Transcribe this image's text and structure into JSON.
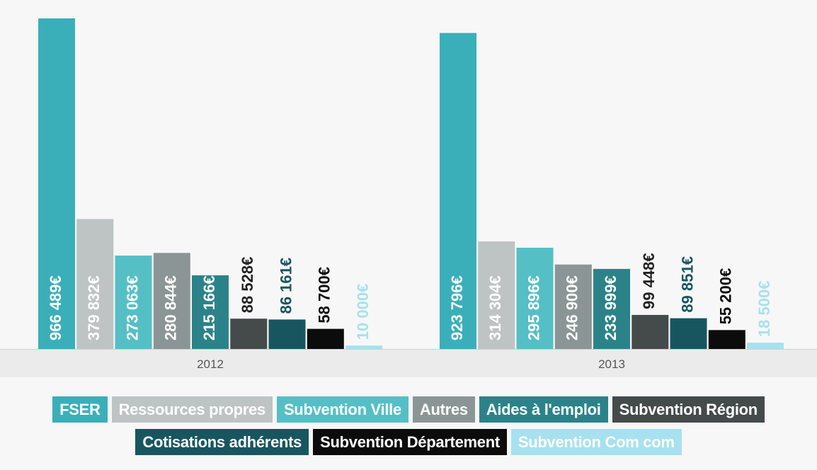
{
  "chart_data": {
    "type": "bar",
    "categories": [
      "2012",
      "2013"
    ],
    "ylim": [
      0,
      1000000
    ],
    "series": [
      {
        "name": "FSER",
        "color": "#3aafba",
        "values": [
          966489,
          923796
        ],
        "labels": [
          "966 489€",
          "923 796€"
        ],
        "label_color": "#ffffff",
        "label_inside": true
      },
      {
        "name": "Ressources propres",
        "color": "#bec3c4",
        "values": [
          379832,
          314304
        ],
        "labels": [
          "379 832€",
          "314 304€"
        ],
        "label_color": "#ffffff",
        "label_inside": true
      },
      {
        "name": "Subvention Ville",
        "color": "#55bfc6",
        "values": [
          273063,
          295896
        ],
        "labels": [
          "273 063€",
          "295 896€"
        ],
        "label_color": "#ffffff",
        "label_inside": true
      },
      {
        "name": "Autres",
        "color": "#8c9595",
        "values": [
          280844,
          246900
        ],
        "labels": [
          "280 844€",
          "246 900€"
        ],
        "label_color": "#ffffff",
        "label_inside": true
      },
      {
        "name": "Aides à l'emploi",
        "color": "#2b8389",
        "values": [
          215166,
          233999
        ],
        "labels": [
          "215 166€",
          "233 999€"
        ],
        "label_color": "#ffffff",
        "label_inside": true
      },
      {
        "name": "Subvention Région",
        "color": "#454a4b",
        "values": [
          88528,
          99448
        ],
        "labels": [
          "88 528€",
          "99 448€"
        ],
        "label_color": "#222222",
        "label_inside": false
      },
      {
        "name": "Cotisations adhérents",
        "color": "#18565f",
        "values": [
          86161,
          89851
        ],
        "labels": [
          "86 161€",
          "89 851€"
        ],
        "label_color": "#18565f",
        "label_inside": false
      },
      {
        "name": "Subvention Département",
        "color": "#0c0c0c",
        "values": [
          58700,
          55200
        ],
        "labels": [
          "58 700€",
          "55 200€"
        ],
        "label_color": "#0c0c0c",
        "label_inside": false
      },
      {
        "name": "Subvention Com com",
        "color": "#a7e1ef",
        "values": [
          10000,
          18500
        ],
        "labels": [
          "10 000€",
          "18 500€"
        ],
        "label_color": "#a7e1ef",
        "label_inside": false
      }
    ],
    "legend": {
      "position": "bottom",
      "rows": [
        [
          0,
          1,
          2,
          3,
          4,
          5
        ],
        [
          6,
          7,
          8
        ]
      ]
    }
  }
}
